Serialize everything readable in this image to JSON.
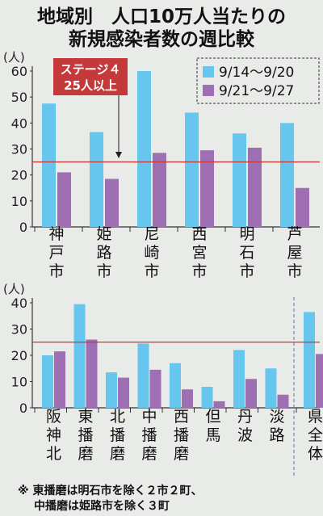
{
  "title_line1": "地域別　人口10万人当たりの",
  "title_line2": "新規感染者数の週比較",
  "threshold": {
    "value": 25,
    "label_line1": "ステージ４",
    "label_line2": "25人以上",
    "color": "#c43a3a"
  },
  "colors": {
    "series1": "#67c6ee",
    "series2": "#9f6fb4",
    "axis": "#333333",
    "background": "#e9ebe8",
    "divider": "#6a6fa8"
  },
  "notes": [
    "※ 東播磨は明石市を除く２市２町、",
    "中播磨は姫路市を除く３町"
  ],
  "chart_data": [
    {
      "type": "bar",
      "unit": "(人)",
      "ylim": [
        0,
        60
      ],
      "yticks": [
        0,
        10,
        20,
        30,
        40,
        50,
        60
      ],
      "legend_position": "top-right",
      "categories": [
        "神戸市",
        "姫路市",
        "尼崎市",
        "西宮市",
        "明石市",
        "芦屋市"
      ],
      "series": [
        {
          "name": "9/14～9/20",
          "values": [
            47.5,
            36.5,
            60,
            44,
            36,
            40
          ]
        },
        {
          "name": "9/21～9/27",
          "values": [
            21,
            18.5,
            28.5,
            29.5,
            30.5,
            15
          ]
        }
      ]
    },
    {
      "type": "bar",
      "unit": "(人)",
      "ylim": [
        0,
        40
      ],
      "yticks": [
        0,
        10,
        20,
        30,
        40
      ],
      "categories": [
        "阪神北",
        "東播磨",
        "北播磨",
        "中播磨",
        "西播磨",
        "但馬",
        "丹波",
        "淡路",
        "県全体"
      ],
      "series": [
        {
          "name": "9/14～9/20",
          "values": [
            20,
            39.5,
            13.5,
            24.5,
            17,
            8,
            22,
            15,
            36.5
          ]
        },
        {
          "name": "9/21～9/27",
          "values": [
            21.5,
            26,
            11.5,
            14.5,
            7,
            2.5,
            11,
            5,
            20.5
          ]
        }
      ]
    }
  ]
}
